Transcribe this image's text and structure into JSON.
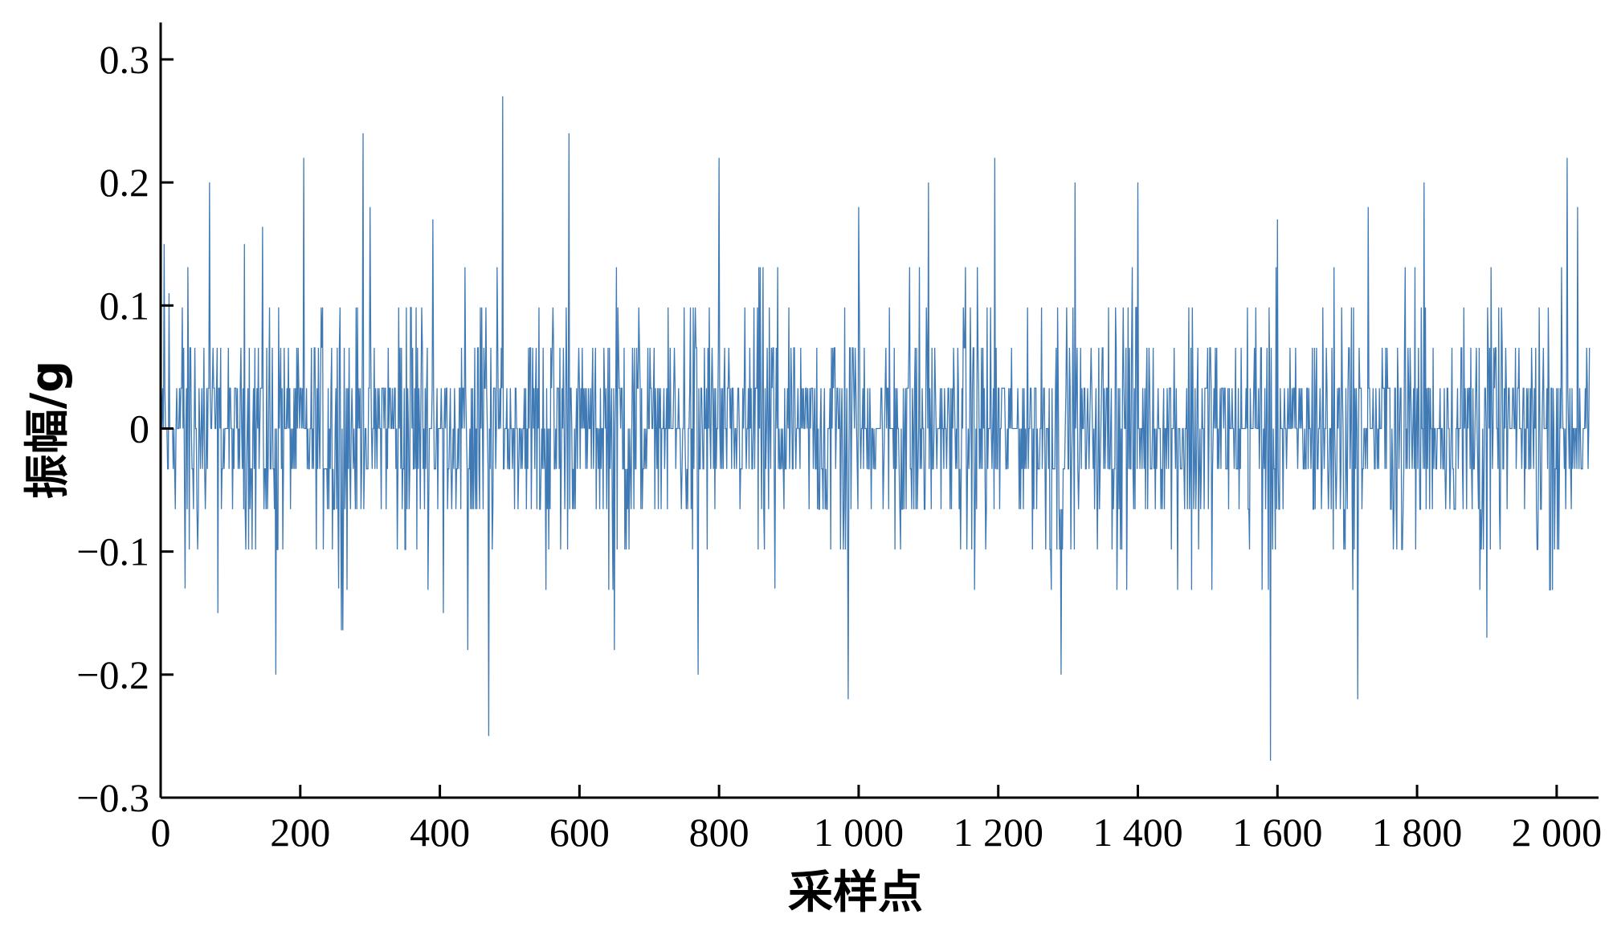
{
  "chart_data": {
    "type": "line",
    "title": "",
    "xlabel": "采样点",
    "ylabel": "振幅/g",
    "xlim": [
      0,
      2060
    ],
    "ylim": [
      -0.3,
      0.33
    ],
    "x_ticks": [
      0,
      200,
      400,
      600,
      800,
      1000,
      1200,
      1400,
      1600,
      1800,
      2000
    ],
    "x_tick_labels": [
      "0",
      "200",
      "400",
      "600",
      "800",
      "1 000",
      "1 200",
      "1 400",
      "1 600",
      "1 800",
      "2 000"
    ],
    "y_ticks": [
      -0.3,
      -0.2,
      -0.1,
      0,
      0.1,
      0.2,
      0.3
    ],
    "y_tick_labels": [
      "−0.3",
      "−0.2",
      "−0.1",
      "0",
      "0.1",
      "0.2",
      "0.3"
    ],
    "grid": false,
    "line_color": "#3f7ab5",
    "series": [
      {
        "n_points": 2048,
        "peaks": [
          {
            "x": 5,
            "y": 0.15
          },
          {
            "x": 12,
            "y": 0.11
          },
          {
            "x": 35,
            "y": -0.13
          },
          {
            "x": 70,
            "y": 0.2
          },
          {
            "x": 82,
            "y": -0.15
          },
          {
            "x": 120,
            "y": 0.15
          },
          {
            "x": 165,
            "y": -0.2
          },
          {
            "x": 205,
            "y": 0.22
          },
          {
            "x": 255,
            "y": -0.13
          },
          {
            "x": 290,
            "y": 0.24
          },
          {
            "x": 300,
            "y": 0.18
          },
          {
            "x": 390,
            "y": 0.17
          },
          {
            "x": 405,
            "y": -0.15
          },
          {
            "x": 440,
            "y": -0.18
          },
          {
            "x": 470,
            "y": -0.25
          },
          {
            "x": 490,
            "y": 0.27
          },
          {
            "x": 585,
            "y": 0.24
          },
          {
            "x": 650,
            "y": -0.18
          },
          {
            "x": 770,
            "y": -0.2
          },
          {
            "x": 800,
            "y": 0.22
          },
          {
            "x": 880,
            "y": -0.13
          },
          {
            "x": 985,
            "y": -0.22
          },
          {
            "x": 1000,
            "y": 0.18
          },
          {
            "x": 1100,
            "y": 0.2
          },
          {
            "x": 1195,
            "y": 0.22
          },
          {
            "x": 1290,
            "y": -0.2
          },
          {
            "x": 1310,
            "y": 0.2
          },
          {
            "x": 1400,
            "y": 0.2
          },
          {
            "x": 1590,
            "y": -0.27
          },
          {
            "x": 1600,
            "y": 0.17
          },
          {
            "x": 1715,
            "y": -0.22
          },
          {
            "x": 1730,
            "y": 0.18
          },
          {
            "x": 1810,
            "y": 0.2
          },
          {
            "x": 1900,
            "y": -0.17
          },
          {
            "x": 2015,
            "y": 0.22
          },
          {
            "x": 2030,
            "y": 0.18
          }
        ]
      }
    ]
  }
}
